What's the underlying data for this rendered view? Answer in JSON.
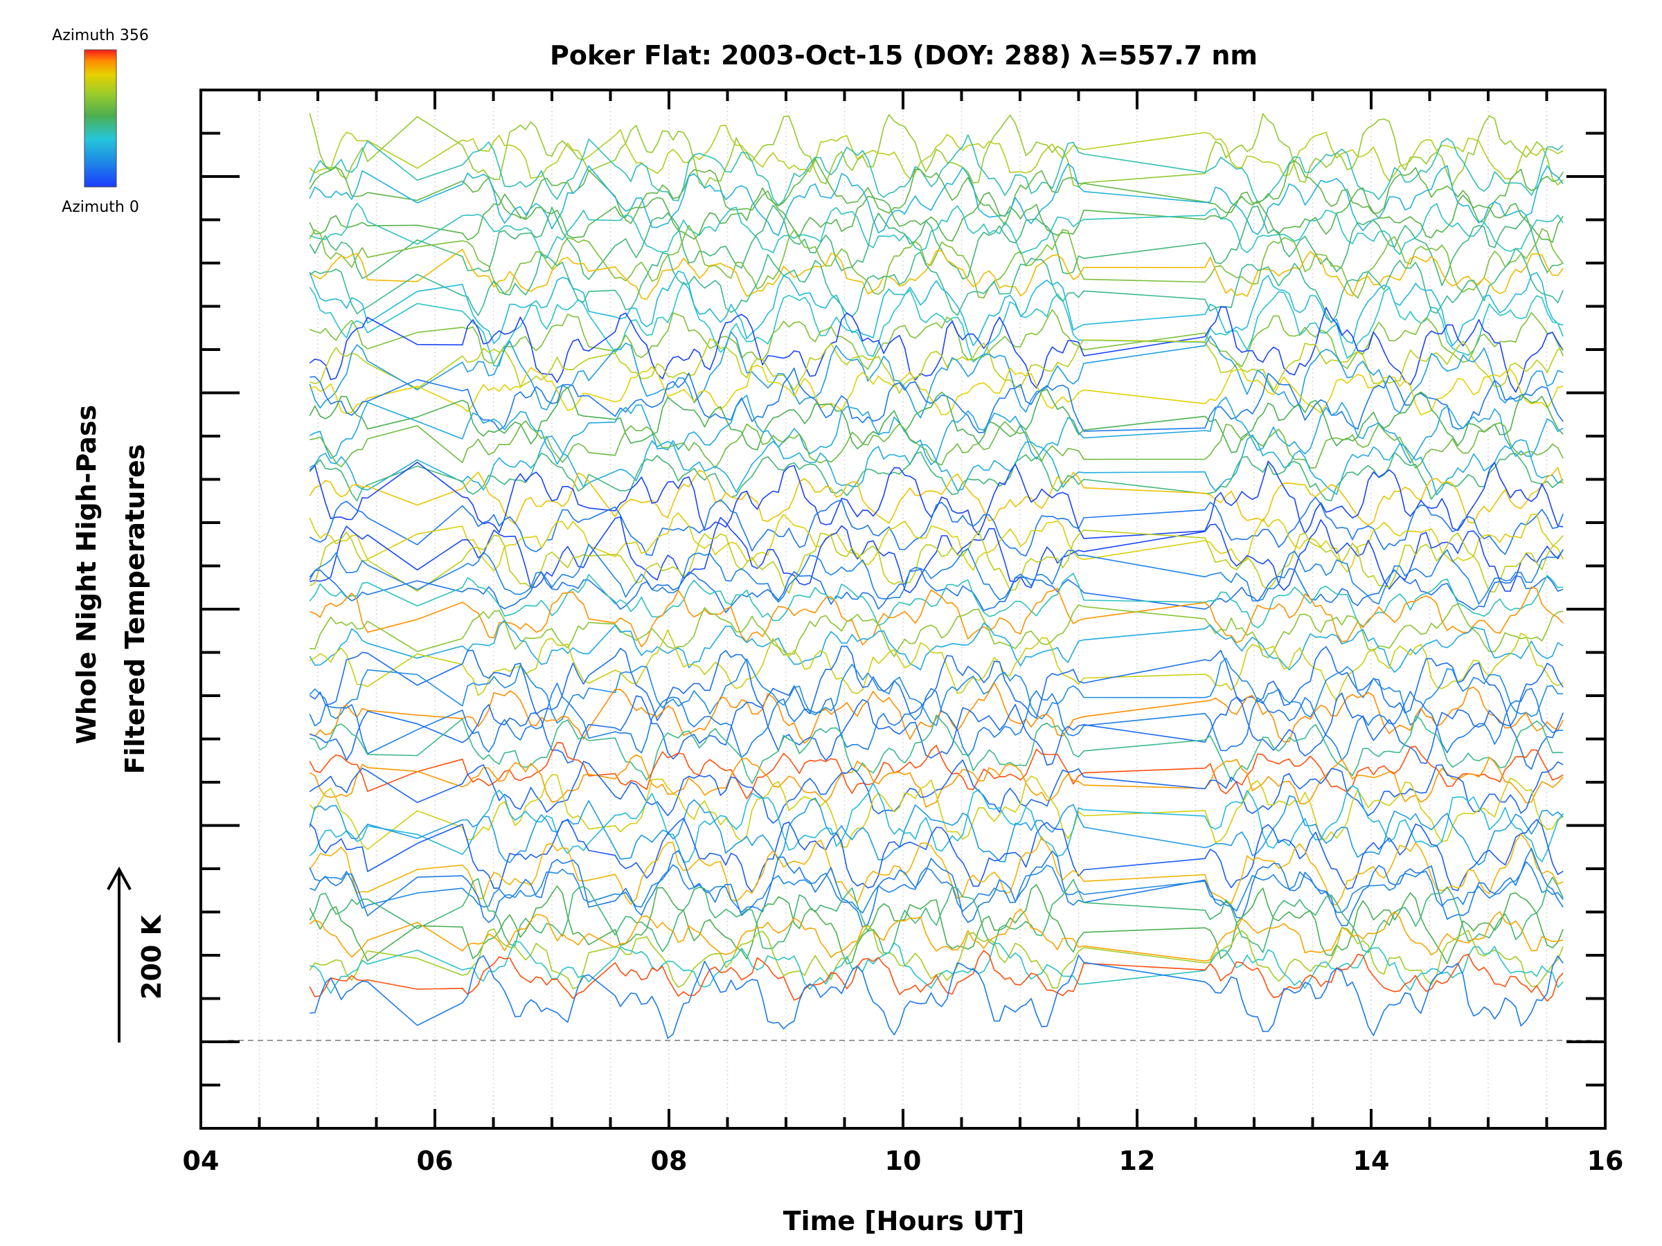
{
  "chart_data": {
    "type": "line",
    "title": "Poker Flat: 2003-Oct-15 (DOY: 288) λ=557.7 nm",
    "xlabel": "Time [Hours UT]",
    "ylabel_lines": [
      "Whole Night High-Pass",
      "Filtered Temperatures"
    ],
    "scale_label": "200 K",
    "x_ticks": [
      "04",
      "06",
      "08",
      "10",
      "12",
      "14",
      "16"
    ],
    "xlim": [
      4,
      16
    ],
    "x_minor_step": 0.5,
    "y_major_tick_count": 6,
    "y_minor_tick_count": 25,
    "grid": "vertical-dotted",
    "baseline": "dashed",
    "colorbar": {
      "max_label": "Azimuth 356",
      "min_label": "Azimuth 0",
      "colormap": "rainbow",
      "range": [
        0,
        356
      ]
    },
    "series_count": 60,
    "data_x_range": [
      4.93,
      15.68
    ],
    "gap_intervals": [
      [
        5.45,
        6.2
      ],
      [
        7.32,
        7.52
      ],
      [
        11.58,
        12.55
      ]
    ],
    "note_values": "Offset-stacked high-pass filtered temperature traces, one per azimuth; individual sample values are not printed in the figure."
  }
}
